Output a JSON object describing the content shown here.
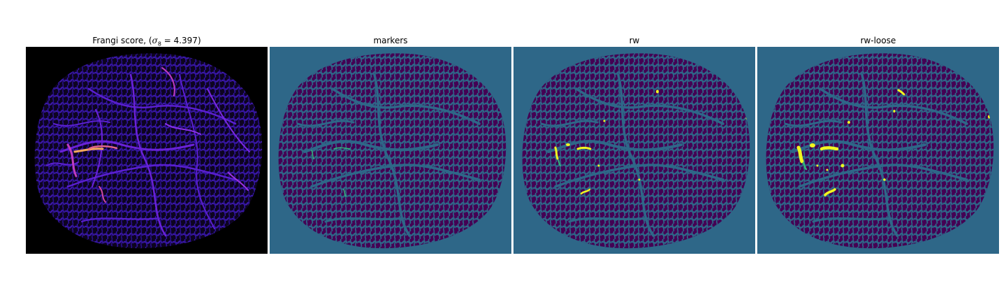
{
  "colors": {
    "background": "#2e6788",
    "tissue": "#440154",
    "frangi_bg": "#000000",
    "frangi_vessel": "#5a1fd0",
    "frangi_hot": "#f5a85c",
    "highlight_yellow": "#f2f51f",
    "highlight_green": "#32b67a"
  },
  "panels": [
    {
      "id": "frangi",
      "title_prefix": "Frangi score, (",
      "title_symbol": "σ",
      "title_subscript": "8",
      "title_suffix": " = 4.397)",
      "colormap": "plasma-like"
    },
    {
      "id": "markers",
      "title": "markers",
      "colormap": "viridis"
    },
    {
      "id": "rw",
      "title": "rw",
      "colormap": "viridis"
    },
    {
      "id": "rw-loose",
      "title": "rw-loose",
      "colormap": "viridis"
    }
  ]
}
